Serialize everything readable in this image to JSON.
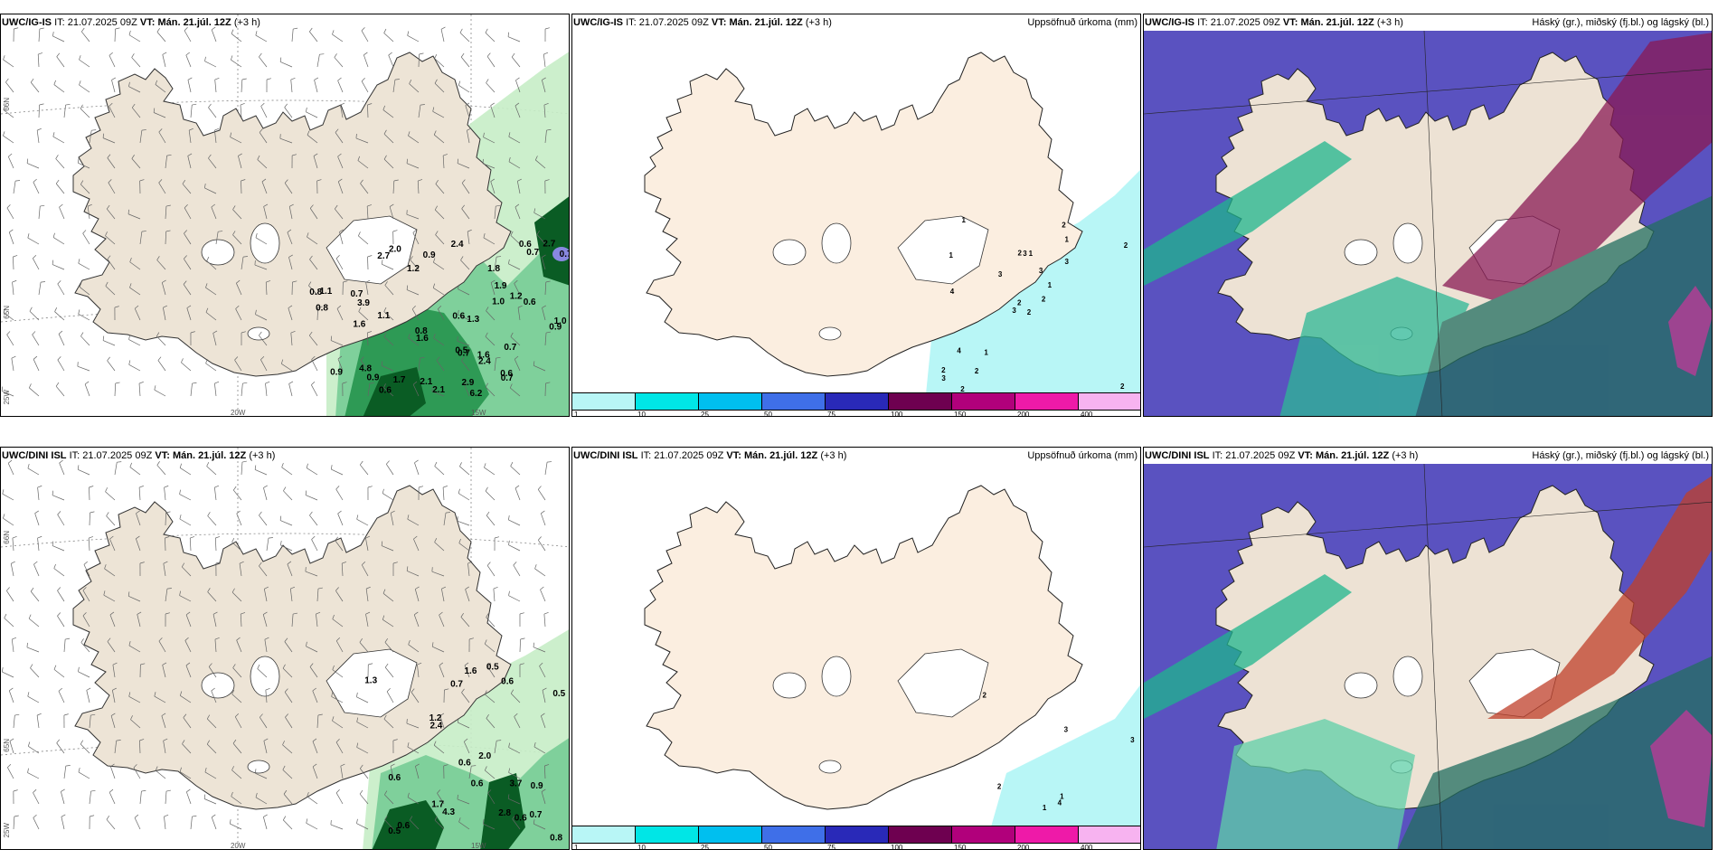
{
  "panels": [
    {
      "id": "p1",
      "model": "UWC/IG-IS",
      "it_label": "IT:",
      "it_value": "21.07.2025 09Z",
      "vt_label": "VT:",
      "vt_value": "Mán. 21.júl. 12Z",
      "lead": "(+3 h)",
      "right_title": ""
    },
    {
      "id": "p2",
      "model": "UWC/IG-IS",
      "it_label": "IT:",
      "it_value": "21.07.2025 09Z",
      "vt_label": "VT:",
      "vt_value": "Mán. 21.júl. 12Z",
      "lead": "(+3 h)",
      "right_title": "Uppsöfnuð úrkoma (mm)"
    },
    {
      "id": "p3",
      "model": "UWC/IG-IS",
      "it_label": "IT:",
      "it_value": "21.07.2025 09Z",
      "vt_label": "VT:",
      "vt_value": "Mán. 21.júl. 12Z",
      "lead": "(+3 h)",
      "right_title": "Háský (gr.), miðský (fj.bl.) og lágský (bl.)"
    },
    {
      "id": "p4",
      "model": "UWC/DINI ISL",
      "it_label": "IT:",
      "it_value": "21.07.2025 09Z",
      "vt_label": "VT:",
      "vt_value": "Mán. 21.júl. 12Z",
      "lead": "(+3 h)",
      "right_title": ""
    },
    {
      "id": "p5",
      "model": "UWC/DINI ISL",
      "it_label": "IT:",
      "it_value": "21.07.2025 09Z",
      "vt_label": "VT:",
      "vt_value": "Mán. 21.júl. 12Z",
      "lead": "(+3 h)",
      "right_title": "Uppsöfnuð úrkoma (mm)"
    },
    {
      "id": "p6",
      "model": "UWC/DINI ISL",
      "it_label": "IT:",
      "it_value": "21.07.2025 09Z",
      "vt_label": "VT:",
      "vt_value": "Mán. 21.júl. 12Z",
      "lead": "(+3 h)",
      "right_title": "Háský (gr.), miðský (fj.bl.) og lágský (bl.)"
    }
  ],
  "axis_labels": {
    "lat66": "66N",
    "lat65": "65N",
    "lon20": "20W",
    "lon25": "25W",
    "lon15": "15W"
  },
  "colorbar": {
    "colors": [
      "#b8f6f6",
      "#00e6e6",
      "#00bfef",
      "#3f6fe8",
      "#2929b8",
      "#6e0050",
      "#b1007b",
      "#ee1aa8",
      "#f7b3f0"
    ],
    "labels": [
      "1",
      "10",
      "25",
      "50",
      "75",
      "100",
      "150",
      "200",
      "400"
    ]
  },
  "precip_values_p1": [
    "6.2",
    "2.7",
    "4.8",
    "0.7",
    "1.2",
    "2.9",
    "0.9",
    "1.1",
    "1.6",
    "0.9",
    "0.9",
    "0.8",
    "0.8",
    "0.5",
    "1.0",
    "0.6",
    "0.8",
    "0.7",
    "0.7",
    "0.6",
    "0.6",
    "0.7",
    "0.6",
    "0.7",
    "1.3",
    "1.9",
    "1.6",
    "3.9",
    "2.1",
    "1.2",
    "2.4",
    "2.7",
    "1.8",
    "1.7",
    "2.0",
    "2.1",
    "2.4",
    "1.1",
    "1.0",
    "1.6",
    "0.9",
    "0.6",
    "0.7"
  ],
  "precip_values_p4": [
    "0.5",
    "0.9",
    "2.0",
    "0.6",
    "0.7",
    "0.5",
    "0.7",
    "0.6",
    "0.6",
    "1.7",
    "0.8",
    "2.4",
    "4.3",
    "1.6",
    "2.8",
    "1.2",
    "3.7",
    "0.6",
    "0.6",
    "0.5",
    "1.3",
    "0.6"
  ],
  "precip_values_p2": [
    "2",
    "1",
    "2",
    "2",
    "1",
    "1",
    "2",
    "1",
    "1",
    "2",
    "1",
    "2",
    "4",
    "2",
    "3",
    "3",
    "2",
    "2",
    "3",
    "4",
    "3",
    "3",
    "2",
    "3"
  ],
  "precip_values_p5": [
    "1",
    "1",
    "3",
    "2",
    "3",
    "2",
    "4"
  ],
  "colors": {
    "land": "#ede4d6",
    "land2": "#fbeee0",
    "sea": "#ffffff",
    "green1": "#c6edc6",
    "green2": "#7fd09b",
    "green3": "#2e9a55",
    "green4": "#0a5c24",
    "cloud_base": "#5a52c0"
  }
}
